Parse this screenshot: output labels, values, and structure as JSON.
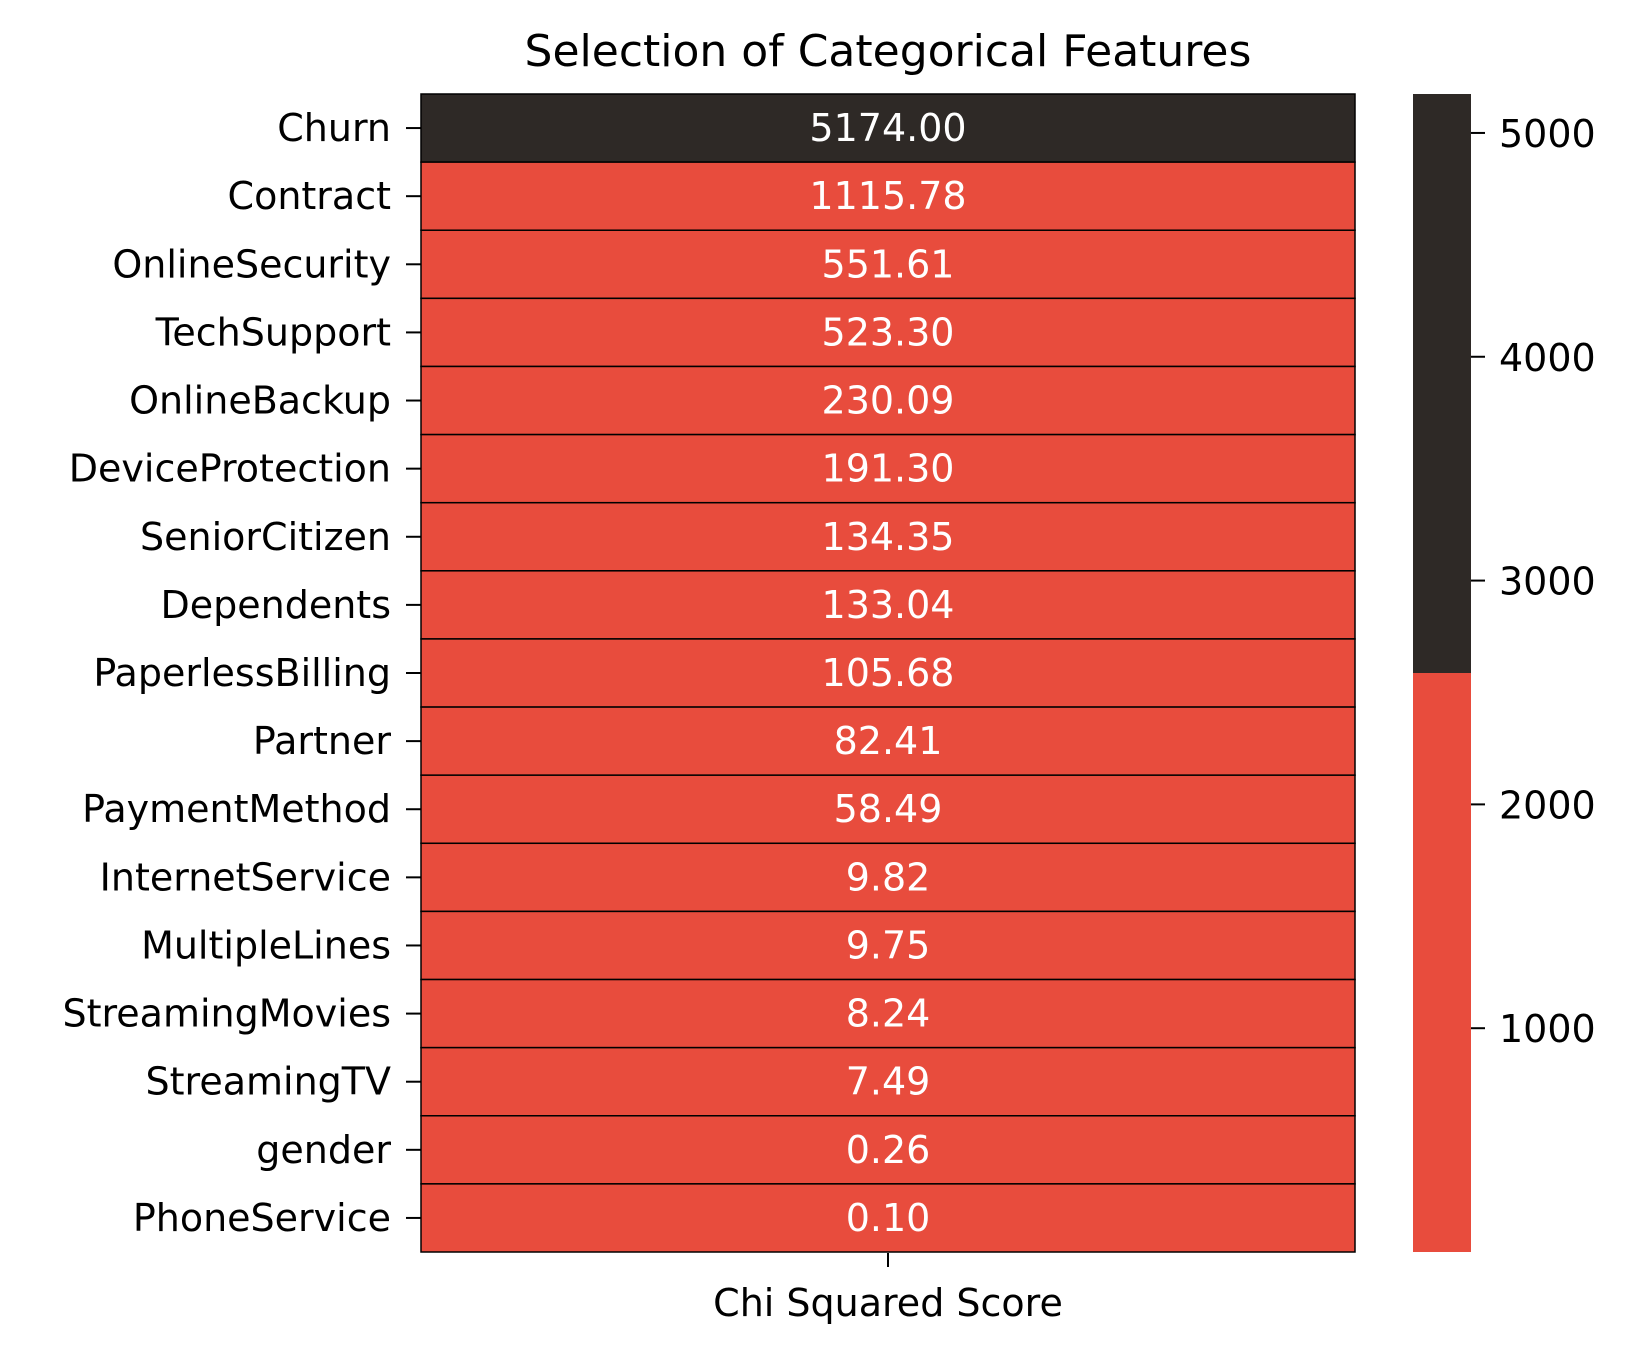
{
  "chart_data": {
    "type": "heatmap",
    "title": "Selection of Categorical Features",
    "column_label": "Chi Squared Score",
    "rows": [
      {
        "feature": "Churn",
        "value": 5174.0,
        "display": "5174.00"
      },
      {
        "feature": "Contract",
        "value": 1115.78,
        "display": "1115.78"
      },
      {
        "feature": "OnlineSecurity",
        "value": 551.61,
        "display": "551.61"
      },
      {
        "feature": "TechSupport",
        "value": 523.3,
        "display": "523.30"
      },
      {
        "feature": "OnlineBackup",
        "value": 230.09,
        "display": "230.09"
      },
      {
        "feature": "DeviceProtection",
        "value": 191.3,
        "display": "191.30"
      },
      {
        "feature": "SeniorCitizen",
        "value": 134.35,
        "display": "134.35"
      },
      {
        "feature": "Dependents",
        "value": 133.04,
        "display": "133.04"
      },
      {
        "feature": "PaperlessBilling",
        "value": 105.68,
        "display": "105.68"
      },
      {
        "feature": "Partner",
        "value": 82.41,
        "display": "82.41"
      },
      {
        "feature": "PaymentMethod",
        "value": 58.49,
        "display": "58.49"
      },
      {
        "feature": "InternetService",
        "value": 9.82,
        "display": "9.82"
      },
      {
        "feature": "MultipleLines",
        "value": 9.75,
        "display": "9.75"
      },
      {
        "feature": "StreamingMovies",
        "value": 8.24,
        "display": "8.24"
      },
      {
        "feature": "StreamingTV",
        "value": 7.49,
        "display": "7.49"
      },
      {
        "feature": "gender",
        "value": 0.26,
        "display": "0.26"
      },
      {
        "feature": "PhoneService",
        "value": 0.1,
        "display": "0.10"
      }
    ],
    "colorbar": {
      "min": 0.1,
      "max": 5174.0,
      "ticks": [
        1000,
        2000,
        3000,
        4000,
        5000
      ],
      "tick_labels": [
        "1000",
        "2000",
        "3000",
        "4000",
        "5000"
      ],
      "threshold": 2587.05,
      "colors": [
        "#E84C3D",
        "#2E2926"
      ]
    }
  }
}
